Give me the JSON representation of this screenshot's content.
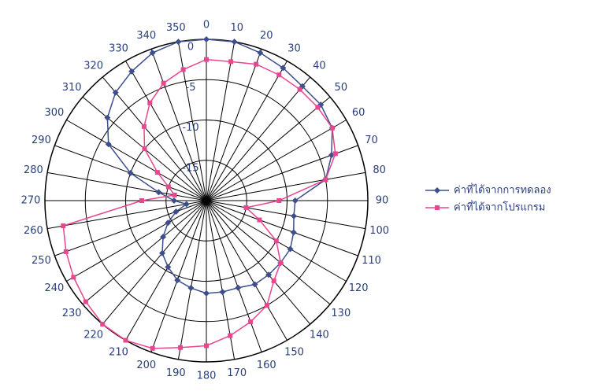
{
  "chart_data": {
    "type": "polar",
    "categories": [
      "0",
      "10",
      "20",
      "30",
      "40",
      "50",
      "60",
      "70",
      "80",
      "90",
      "100",
      "110",
      "120",
      "130",
      "140",
      "150",
      "160",
      "170",
      "180",
      "190",
      "200",
      "210",
      "220",
      "230",
      "240",
      "250",
      "260",
      "270",
      "280",
      "290",
      "300",
      "310",
      "320",
      "330",
      "340",
      "350"
    ],
    "ylim": [
      -20,
      0
    ],
    "yticks": [
      0,
      -5,
      -10,
      -15
    ],
    "series": [
      {
        "name": "ค่าที่ได้จากการทดลอง",
        "color": "#3c4f8c",
        "marker": "diamond",
        "values": [
          0,
          0,
          -0.5,
          -1,
          -1.5,
          -1.5,
          -2,
          -3.5,
          -5,
          -9,
          -9,
          -8.5,
          -8,
          -8,
          -8,
          -8,
          -8.5,
          -8.5,
          -8.5,
          -9,
          -9.5,
          -10.5,
          -11.5,
          -13,
          -14.5,
          -16,
          -17.5,
          -16,
          -14,
          -10,
          -6,
          -4,
          -2.5,
          -1.5,
          -0.5,
          0
        ]
      },
      {
        "name": "ค่าที่ได้จากโปรแกรม",
        "color": "#e8468f",
        "marker": "square",
        "values": [
          -2.5,
          -2.5,
          -2,
          -2,
          -2,
          -2,
          -2,
          -3,
          -5,
          -11,
          -15,
          -13,
          -10,
          -8,
          -7,
          -5,
          -4,
          -3,
          -2,
          -1.5,
          -0.5,
          0,
          0,
          -0.5,
          -1,
          -1.5,
          -2,
          -12,
          -16,
          -15,
          -13,
          -10,
          -8,
          -6,
          -4.5,
          -3.5
        ]
      }
    ]
  }
}
